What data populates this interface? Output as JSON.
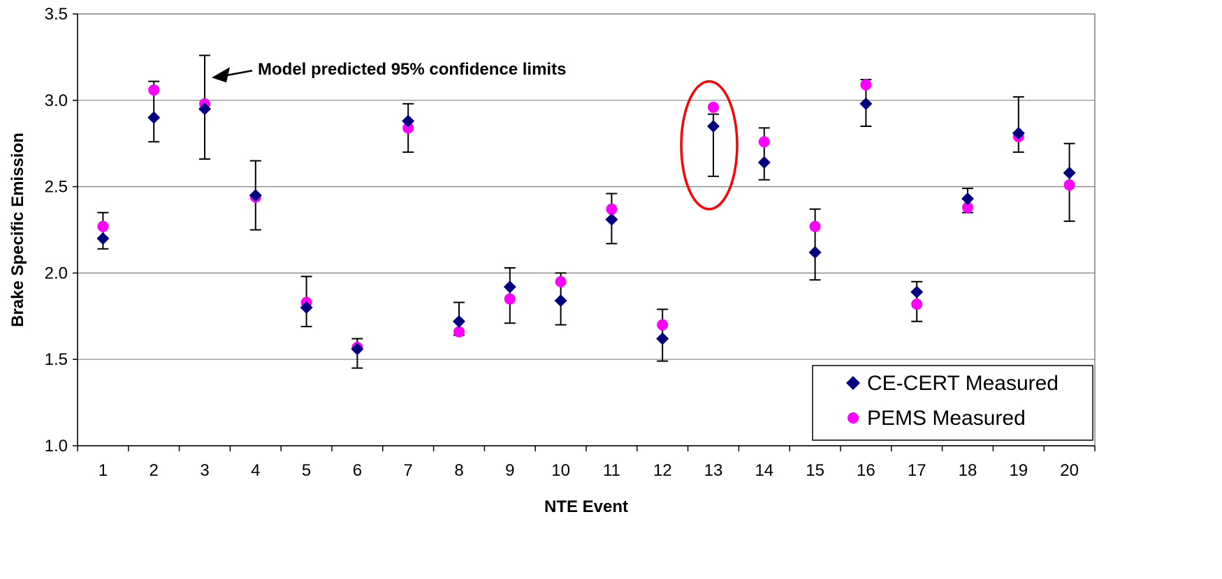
{
  "chart_data": {
    "type": "scatter",
    "xlabel": "NTE Event",
    "ylabel": "Brake Specific Emission",
    "x_ticks": [
      "1",
      "2",
      "3",
      "4",
      "5",
      "6",
      "7",
      "8",
      "9",
      "10",
      "11",
      "12",
      "13",
      "14",
      "15",
      "16",
      "17",
      "18",
      "19",
      "20"
    ],
    "y_ticks": [
      "1.0",
      "1.5",
      "2.0",
      "2.5",
      "3.0",
      "3.5"
    ],
    "ylim": [
      1.0,
      3.5
    ],
    "xlim": [
      0.5,
      20.5
    ],
    "grid": "horizontal",
    "legend_position": "bottom-right",
    "series": [
      {
        "name": "CE-CERT Measured",
        "marker": "diamond",
        "color": "#000080",
        "x": [
          1,
          2,
          3,
          4,
          5,
          6,
          7,
          8,
          9,
          10,
          11,
          12,
          13,
          14,
          15,
          16,
          17,
          18,
          19,
          20
        ],
        "values": [
          2.2,
          2.9,
          2.95,
          2.45,
          1.8,
          1.56,
          2.88,
          1.72,
          1.92,
          1.84,
          2.31,
          1.62,
          2.85,
          2.64,
          2.12,
          2.98,
          1.89,
          2.43,
          2.81,
          2.58
        ]
      },
      {
        "name": "PEMS Measured",
        "marker": "circle",
        "color": "#ff00ff",
        "x": [
          1,
          2,
          3,
          4,
          5,
          6,
          7,
          8,
          9,
          10,
          11,
          12,
          13,
          14,
          15,
          16,
          17,
          18,
          19,
          20
        ],
        "values": [
          2.27,
          3.06,
          2.98,
          2.44,
          1.83,
          1.57,
          2.84,
          1.66,
          1.85,
          1.95,
          2.37,
          1.7,
          2.96,
          2.76,
          2.27,
          3.09,
          1.82,
          2.38,
          2.79,
          2.51
        ]
      }
    ],
    "error_bars": {
      "x": [
        1,
        2,
        3,
        4,
        5,
        6,
        7,
        8,
        9,
        10,
        11,
        12,
        13,
        14,
        15,
        16,
        17,
        18,
        19,
        20
      ],
      "low": [
        2.14,
        2.76,
        2.66,
        2.25,
        1.69,
        1.45,
        2.7,
        1.64,
        1.71,
        1.7,
        2.17,
        1.49,
        2.56,
        2.54,
        1.96,
        2.85,
        1.72,
        2.35,
        2.7,
        2.3
      ],
      "high": [
        2.35,
        3.11,
        3.26,
        2.65,
        1.98,
        1.62,
        2.98,
        1.83,
        2.03,
        2.0,
        2.46,
        1.79,
        2.92,
        2.84,
        2.37,
        3.12,
        1.95,
        2.49,
        3.02,
        2.75
      ]
    },
    "annotations": [
      {
        "text": "Model predicted 95% confidence limits",
        "arrow_to_x": 3,
        "arrow_to_y": 3.18
      }
    ],
    "highlight": {
      "shape": "ellipse",
      "color": "#ff0000",
      "x": 13,
      "y_center": 2.74,
      "y_span": [
        2.37,
        3.11
      ]
    }
  }
}
